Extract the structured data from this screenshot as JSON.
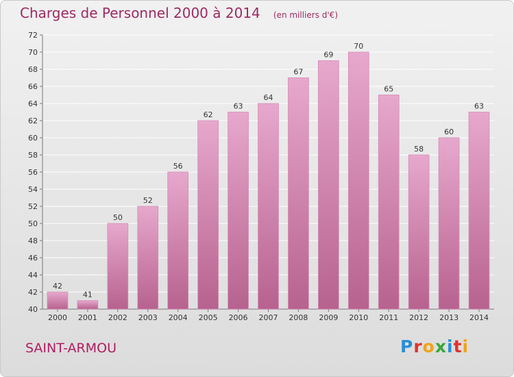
{
  "title": "Charges de Personnel 2000 à 2014",
  "subtitle": "(en milliers d'€)",
  "place": "SAINT-ARMOU",
  "logo": {
    "letters": [
      "P",
      "r",
      "o",
      "x",
      "i",
      "t",
      "i"
    ],
    "colors": [
      "#2a8fd6",
      "#e0332a",
      "#f0a21a",
      "#38a83a",
      "#2a8fd6",
      "#e0332a",
      "#f0a21a"
    ]
  },
  "colors": {
    "bar_light": "#e7a8cd",
    "bar_dark": "#b7628f",
    "title": "#9b2a62"
  },
  "chart_data": {
    "type": "bar",
    "categories": [
      "2000",
      "2001",
      "2002",
      "2003",
      "2004",
      "2005",
      "2006",
      "2007",
      "2008",
      "2009",
      "2010",
      "2011",
      "2012",
      "2013",
      "2014"
    ],
    "values": [
      42,
      41,
      50,
      52,
      56,
      62,
      63,
      64,
      67,
      69,
      70,
      65,
      58,
      60,
      63
    ],
    "ylim": [
      40,
      72
    ],
    "yticks": [
      40,
      42,
      44,
      46,
      48,
      50,
      52,
      54,
      56,
      58,
      60,
      62,
      64,
      66,
      68,
      70,
      72
    ],
    "grid": true,
    "data_labels": true
  }
}
